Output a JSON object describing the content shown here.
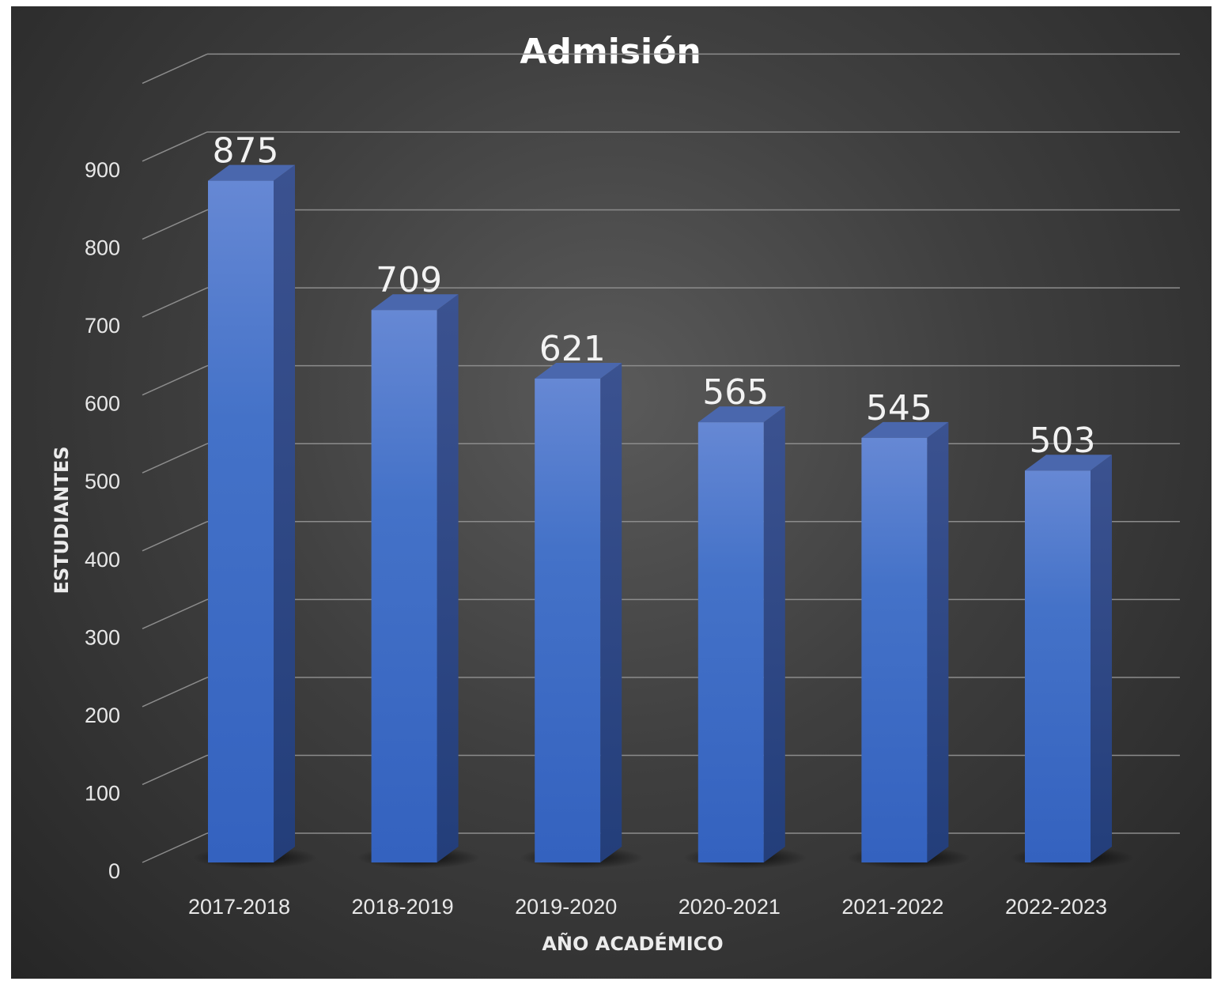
{
  "chart_data": {
    "type": "bar",
    "title": "Admisión",
    "xlabel": "AÑO ACADÉMICO",
    "ylabel": "ESTUDIANTES",
    "categories": [
      "2017-2018",
      "2018-2019",
      "2019-2020",
      "2020-2021",
      "2021-2022",
      "2022-2023"
    ],
    "values": [
      875,
      709,
      621,
      565,
      545,
      503
    ],
    "data_labels": [
      "875",
      "709",
      "621",
      "565",
      "545",
      "503"
    ],
    "yticks": [
      "0",
      "100",
      "200",
      "300",
      "400",
      "500",
      "600",
      "700",
      "800",
      "900"
    ],
    "ylim": [
      0,
      900
    ],
    "grid": true,
    "legend": "none",
    "bar_color": "#4472c4",
    "background_color": "#3a3a3a"
  }
}
